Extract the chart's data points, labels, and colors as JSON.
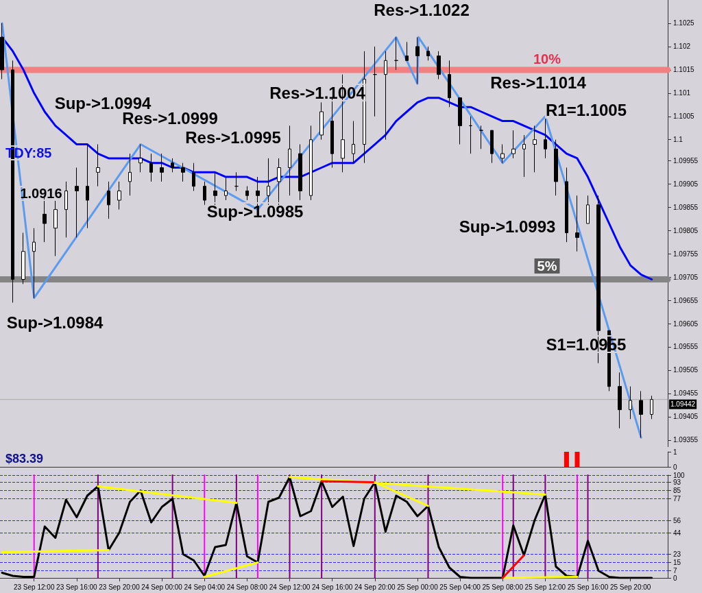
{
  "chart_data": [
    {
      "type": "candlestick",
      "x": [
        "--09-23T09:00",
        "--09-23T10:00",
        "--09-23T11:00",
        "--09-23T12:00",
        "--09-23T13:00",
        "--09-23T14:00",
        "--09-23T15:00",
        "--09-23T16:00",
        "--09-23T17:00",
        "--09-23T18:00",
        "--09-23T19:00",
        "--09-23T20:00",
        "--09-23T21:00",
        "--09-23T22:00",
        "--09-23T23:00",
        "--09-24T00:00",
        "--09-24T01:00",
        "--09-24T02:00",
        "--09-24T03:00",
        "--09-24T04:00",
        "--09-24T05:00",
        "--09-24T06:00",
        "--09-24T07:00",
        "--09-24T08:00",
        "--09-24T09:00",
        "--09-24T10:00",
        "--09-24T11:00",
        "--09-24T12:00",
        "--09-24T13:00",
        "--09-24T14:00",
        "--09-24T15:00",
        "--09-24T16:00",
        "--09-24T17:00",
        "--09-24T18:00",
        "--09-24T19:00",
        "--09-24T20:00",
        "--09-24T21:00",
        "--09-24T22:00",
        "--09-24T23:00",
        "--09-25T00:00",
        "--09-25T01:00",
        "--09-25T02:00",
        "--09-25T03:00",
        "--09-25T04:00",
        "--09-25T05:00",
        "--09-25T06:00",
        "--09-25T07:00",
        "--09-25T08:00",
        "--09-25T09:00",
        "--09-25T10:00",
        "--09-25T11:00",
        "--09-25T12:00",
        "--09-25T13:00",
        "--09-25T14:00",
        "--09-25T15:00",
        "--09-25T16:00",
        "--09-25T17:00",
        "--09-25T18:00",
        "--09-25T19:00",
        "--09-25T20:00",
        "--09-25T21:00",
        "--09-25T22:00"
      ],
      "ohlc": [
        [
          1.1022,
          1.1025,
          1.1013,
          1.1015
        ],
        [
          1.1015,
          1.1017,
          1.0965,
          1.097
        ],
        [
          1.097,
          1.098,
          1.0969,
          1.0976
        ],
        [
          1.0976,
          1.0981,
          1.0966,
          1.0978
        ],
        [
          1.0984,
          1.0988,
          1.0978,
          1.0982
        ],
        [
          1.0981,
          1.0987,
          1.0975,
          1.0985
        ],
        [
          1.0985,
          1.0991,
          1.0979,
          1.0989
        ],
        [
          1.099,
          1.0994,
          1.0979,
          1.0989
        ],
        [
          1.099,
          1.0999,
          1.0981,
          1.0987
        ],
        [
          1.0993,
          1.0999,
          1.099,
          1.0994
        ],
        [
          1.0989,
          1.0991,
          1.0983,
          1.0986
        ],
        [
          1.0987,
          1.0991,
          1.0985,
          1.0989
        ],
        [
          1.0991,
          1.0997,
          1.0988,
          1.0993
        ],
        [
          1.0995,
          1.0999,
          1.0993,
          1.0996
        ],
        [
          1.0995,
          1.0997,
          1.0991,
          1.0993
        ],
        [
          1.0994,
          1.0997,
          1.0991,
          1.0993
        ],
        [
          1.0995,
          1.0996,
          1.0993,
          1.0994
        ],
        [
          1.0994,
          1.0995,
          1.0991,
          1.0993
        ],
        [
          1.0993,
          1.0995,
          1.0989,
          1.099
        ],
        [
          1.099,
          1.0991,
          1.0986,
          1.0987
        ],
        [
          1.0989,
          1.0993,
          1.0986,
          1.0988
        ],
        [
          1.0988,
          1.0992,
          1.0987,
          1.0989
        ],
        [
          1.099,
          1.0993,
          1.0989,
          1.099
        ],
        [
          1.0989,
          1.099,
          1.0987,
          1.0988
        ],
        [
          1.0989,
          1.0992,
          1.0985,
          1.0988
        ],
        [
          1.0988,
          1.0996,
          1.0986,
          1.099
        ],
        [
          1.0991,
          1.0996,
          1.0986,
          1.0994
        ],
        [
          1.0994,
          1.1003,
          1.0988,
          1.0998
        ],
        [
          1.0997,
          1.0999,
          1.0987,
          1.0989
        ],
        [
          1.0988,
          1.1003,
          1.0987,
          1.1
        ],
        [
          1.1001,
          1.1008,
          1.1,
          1.1006
        ],
        [
          1.1004,
          1.1009,
          1.0994,
          1.0997
        ],
        [
          1.0996,
          1.1014,
          1.0993,
          1.1
        ],
        [
          1.0997,
          1.1004,
          1.0995,
          1.0999
        ],
        [
          1.0999,
          1.1019,
          1.0995,
          1.1013
        ],
        [
          1.1014,
          1.102,
          1.1005,
          1.1014
        ],
        [
          1.1014,
          1.1019,
          1.1,
          1.1017
        ],
        [
          1.1017,
          1.1022,
          1.1015,
          1.1017
        ],
        [
          1.1018,
          1.1021,
          1.1017,
          1.1017
        ],
        [
          1.102,
          1.1022,
          1.1012,
          1.1018
        ],
        [
          1.1019,
          1.102,
          1.1017,
          1.1018
        ],
        [
          1.1018,
          1.1019,
          1.1013,
          1.1014
        ],
        [
          1.1014,
          1.1017,
          1.1007,
          1.1009
        ],
        [
          1.1009,
          1.1009,
          1.0999,
          1.1003
        ],
        [
          1.1003,
          1.1005,
          1.0997,
          1.1003
        ],
        [
          1.1002,
          1.1003,
          1.0998,
          1.1002
        ],
        [
          1.1002,
          1.1002,
          1.0995,
          1.0997
        ],
        [
          1.0996,
          1.0999,
          1.0995,
          1.0997
        ],
        [
          1.0997,
          1.1002,
          1.0996,
          1.0998
        ],
        [
          1.0998,
          1.1001,
          1.0992,
          1.0999
        ],
        [
          1.0999,
          1.1003,
          1.0993,
          1.1
        ],
        [
          1.1,
          1.1005,
          1.0996,
          1.0998
        ],
        [
          1.0998,
          1.1,
          1.0988,
          1.0991
        ],
        [
          1.0991,
          1.0994,
          1.0978,
          1.098
        ],
        [
          1.098,
          1.0988,
          1.0976,
          1.0979
        ],
        [
          1.0982,
          1.0988,
          1.0982,
          1.0986
        ],
        [
          1.0986,
          1.0988,
          1.0952,
          1.0959
        ],
        [
          1.0959,
          1.0959,
          1.0946,
          1.0947
        ],
        [
          1.0947,
          1.095,
          1.0938,
          1.0942
        ],
        [
          1.0942,
          1.0947,
          1.094,
          1.0944
        ],
        [
          1.0944,
          1.0946,
          1.0936,
          1.0941
        ],
        [
          1.0941,
          1.0945,
          1.094,
          1.09442
        ]
      ],
      "series": [
        {
          "type": "line",
          "color": "#0000ff",
          "values": [
            1.1022,
            1.1019,
            1.1015,
            1.101,
            1.1006,
            1.1003,
            1.1001,
            1.0999,
            1.0999,
            1.0997,
            1.0996,
            1.0996,
            1.0996,
            1.0996,
            1.0995,
            1.0995,
            1.0994,
            1.0994,
            1.0993,
            1.0993,
            1.0993,
            1.0992,
            1.0992,
            1.0992,
            1.0991,
            1.0991,
            1.0992,
            1.0992,
            1.0992,
            1.0993,
            1.0994,
            1.0995,
            1.0995,
            1.0995,
            1.0997,
            1.0999,
            1.1001,
            1.1004,
            1.1006,
            1.1008,
            1.1009,
            1.1009,
            1.1008,
            1.1007,
            1.1007,
            1.1006,
            1.1005,
            1.1004,
            1.1004,
            1.1003,
            1.1002,
            1.1001,
            1.0999,
            1.0997,
            1.0996,
            1.0992,
            1.0987,
            1.0982,
            1.0977,
            1.0973,
            1.0971,
            1.097
          ]
        },
        {
          "type": "line",
          "color": "#5b9bef",
          "x": [
            "--09-23T09:00",
            "--09-23T12:00",
            "--09-23T22:00",
            "--09-24T09:00",
            "--09-24T22:00",
            "--09-25T00:00",
            "--09-25T00:06",
            "--09-25T08:00",
            "--09-25T12:00",
            "--09-25T21:00"
          ],
          "values": [
            1.1025,
            1.0966,
            1.0999,
            1.0985,
            1.1022,
            1.1012,
            1.1022,
            1.0995,
            1.1005,
            1.0936
          ]
        }
      ],
      "xlim": [
        "--09-23T08:48",
        "--09-25T23:30"
      ],
      "ylim": [
        1.0934,
        1.103
      ],
      "yticks": [
        1.1025,
        1.102,
        1.1015,
        1.101,
        1.1005,
        1.1,
        1.09955,
        1.09905,
        1.09855,
        1.09805,
        1.09755,
        1.09705,
        1.09655,
        1.09605,
        1.09555,
        1.09505,
        1.09455,
        1.09405,
        1.09355
      ],
      "tick_labels": "y",
      "ref_lines": [
        {
          "axis": "y",
          "value": 1.1015,
          "color": "#f28080"
        },
        {
          "axis": "y",
          "value": 1.097,
          "color": "#858585"
        },
        {
          "axis": "y",
          "value": 1.09442,
          "label": "1.09442"
        }
      ],
      "annotations": [
        "Res->1.1022",
        "Res->1.1014",
        "R1=1.1005",
        "Res->1.1004",
        "Res->1.0999",
        "Res->1.0995",
        "Sup->1.0994",
        "Sup->1.0985",
        "Sup->1.0993",
        "S1=1.0955",
        "Sup->1.0984",
        "TDY:85",
        "1.0916",
        "10%",
        "5%"
      ]
    },
    {
      "type": "bar",
      "x": [
        "--09-25T14:00",
        "--09-25T15:00"
      ],
      "series": [
        {
          "color": "#ff0000",
          "values": [
            1,
            1
          ]
        }
      ],
      "xlim": [
        "--09-23T08:48",
        "--09-25T23:30"
      ],
      "ylim": [
        0,
        1
      ],
      "yticks": [
        0,
        1
      ],
      "tick_labels": "y",
      "annotations": [
        "$83.39"
      ]
    },
    {
      "type": "line",
      "x": [
        "--09-23T09:00",
        "--09-23T10:00",
        "--09-23T11:00",
        "--09-23T12:00",
        "--09-23T13:00",
        "--09-23T14:00",
        "--09-23T15:00",
        "--09-23T16:00",
        "--09-23T17:00",
        "--09-23T18:00",
        "--09-23T19:00",
        "--09-23T20:00",
        "--09-23T21:00",
        "--09-23T22:00",
        "--09-23T23:00",
        "--09-24T00:00",
        "--09-24T01:00",
        "--09-24T02:00",
        "--09-24T03:00",
        "--09-24T04:00",
        "--09-24T05:00",
        "--09-24T06:00",
        "--09-24T07:00",
        "--09-24T08:00",
        "--09-24T09:00",
        "--09-24T10:00",
        "--09-24T11:00",
        "--09-24T12:00",
        "--09-24T13:00",
        "--09-24T14:00",
        "--09-24T15:00",
        "--09-24T16:00",
        "--09-24T17:00",
        "--09-24T18:00",
        "--09-24T19:00",
        "--09-24T20:00",
        "--09-24T21:00",
        "--09-24T22:00",
        "--09-24T23:00",
        "--09-25T00:00",
        "--09-25T01:00",
        "--09-25T02:00",
        "--09-25T03:00",
        "--09-25T04:00",
        "--09-25T05:00",
        "--09-25T06:00",
        "--09-25T07:00",
        "--09-25T08:00",
        "--09-25T09:00",
        "--09-25T10:00",
        "--09-25T11:00",
        "--09-25T12:00",
        "--09-25T13:00",
        "--09-25T14:00",
        "--09-25T15:00",
        "--09-25T16:00",
        "--09-25T17:00",
        "--09-25T18:00",
        "--09-25T19:00",
        "--09-25T20:00",
        "--09-25T21:00",
        "--09-25T22:00"
      ],
      "series": [
        {
          "color": "#000000",
          "values": [
            5,
            2,
            1,
            1,
            50,
            39,
            76,
            59,
            80,
            89,
            27,
            44,
            74,
            85,
            54,
            69,
            77,
            23,
            17,
            2,
            30,
            32,
            73,
            21,
            15,
            74,
            78,
            98,
            60,
            65,
            94,
            69,
            79,
            31,
            77,
            93,
            45,
            80,
            74,
            60,
            70,
            30,
            10,
            1,
            0,
            0,
            0,
            0,
            51,
            22,
            56,
            81,
            11,
            2,
            1,
            36,
            7,
            1,
            0,
            0,
            0,
            0
          ]
        },
        {
          "color": "#ffff00",
          "x": [
            "--09-23T09:00",
            "--09-23T19:00"
          ],
          "values": [
            25,
            27
          ]
        },
        {
          "color": "#ffff00",
          "x": [
            "--09-23T18:00",
            "--09-24T07:00"
          ],
          "values": [
            89,
            73
          ]
        },
        {
          "color": "#ffff00",
          "x": [
            "--09-24T04:00",
            "--09-24T09:00"
          ],
          "values": [
            1,
            15
          ]
        },
        {
          "color": "#ffff00",
          "x": [
            "--09-24T12:00",
            "--09-25T12:00"
          ],
          "values": [
            98,
            81
          ]
        },
        {
          "color": "#ff0000",
          "x": [
            "--09-24T15:00",
            "--09-24T20:00"
          ],
          "values": [
            94,
            93
          ]
        },
        {
          "color": "#ffff00",
          "x": [
            "--09-24T20:00",
            "--09-25T01:00"
          ],
          "values": [
            93,
            70
          ]
        },
        {
          "color": "#ffff00",
          "x": [
            "--09-25T08:00",
            "--09-25T15:00"
          ],
          "values": [
            0,
            1
          ]
        },
        {
          "color": "#ff0000",
          "x": [
            "--09-25T08:00",
            "--09-25T10:00"
          ],
          "values": [
            0,
            22
          ]
        }
      ],
      "xlim": [
        "--09-23T08:48",
        "--09-25T23:30"
      ],
      "ylim": [
        0,
        100
      ],
      "yticks": [
        0,
        7,
        15,
        23,
        44,
        56,
        77,
        85,
        93,
        100
      ],
      "grid": "y",
      "xticks": [
        {
          "value": "--09-23T12:00",
          "label": "23 Sep 12:00"
        },
        {
          "value": "--09-23T16:00",
          "label": "23 Sep 16:00"
        },
        {
          "value": "--09-23T20:00",
          "label": "23 Sep 20:00"
        },
        {
          "value": "--09-24T00:00",
          "label": "24 Sep 00:00"
        },
        {
          "value": "--09-24T04:00",
          "label": "24 Sep 04:00"
        },
        {
          "value": "--09-24T08:00",
          "label": "24 Sep 08:00"
        },
        {
          "value": "--09-24T12:00",
          "label": "24 Sep 12:00"
        },
        {
          "value": "--09-24T16:00",
          "label": "24 Sep 16:00"
        },
        {
          "value": "--09-24T20:00",
          "label": "24 Sep 20:00"
        },
        {
          "value": "--09-25T00:00",
          "label": "25 Sep 00:00"
        },
        {
          "value": "--09-25T04:00",
          "label": "25 Sep 04:00"
        },
        {
          "value": "--09-25T08:00",
          "label": "25 Sep 08:00"
        },
        {
          "value": "--09-25T12:00",
          "label": "25 Sep 12:00"
        },
        {
          "value": "--09-25T16:00",
          "label": "25 Sep 16:00"
        },
        {
          "value": "--09-25T20:00",
          "label": "25 Sep 20:00"
        }
      ],
      "ref_lines": [
        {
          "axis": "x",
          "value": "--09-23T12:00",
          "color": "#ff00ff"
        },
        {
          "axis": "x",
          "value": "--09-24T04:00",
          "color": "#ff00ff"
        },
        {
          "axis": "x",
          "value": "--09-24T09:00",
          "color": "#ff00ff"
        },
        {
          "axis": "x",
          "value": "--09-25T08:00",
          "color": "#ff00ff"
        },
        {
          "axis": "x",
          "value": "--09-25T15:00",
          "color": "#ff00ff"
        },
        {
          "axis": "x",
          "value": "--09-23T18:00",
          "color": "#800080"
        },
        {
          "axis": "x",
          "value": "--09-24T01:00",
          "color": "#800080"
        },
        {
          "axis": "x",
          "value": "--09-24T07:00",
          "color": "#800080"
        },
        {
          "axis": "x",
          "value": "--09-24T12:00",
          "color": "#800080"
        },
        {
          "axis": "x",
          "value": "--09-24T15:00",
          "color": "#800080"
        },
        {
          "axis": "x",
          "value": "--09-24T20:00",
          "color": "#800080"
        },
        {
          "axis": "x",
          "value": "--09-25T01:00",
          "color": "#800080"
        },
        {
          "axis": "x",
          "value": "--09-25T09:00",
          "color": "#800080"
        },
        {
          "axis": "x",
          "value": "--09-25T12:00",
          "color": "#800080"
        },
        {
          "axis": "x",
          "value": "--09-25T16:00",
          "color": "#800080"
        }
      ]
    }
  ]
}
